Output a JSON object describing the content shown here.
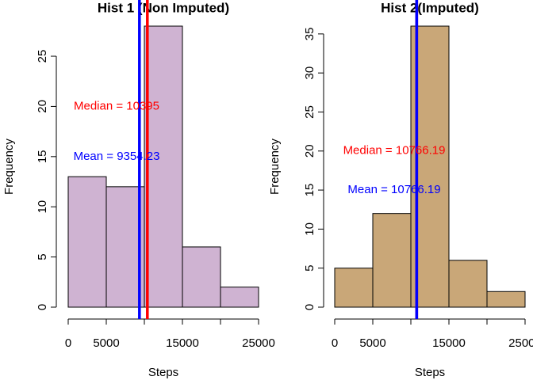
{
  "chart_data": [
    {
      "type": "histogram",
      "title": "Hist 1 (Non Imputed)",
      "xlabel": "Steps",
      "ylabel": "Frequency",
      "bins": [
        0,
        5000,
        10000,
        15000,
        20000,
        25000
      ],
      "values": [
        13,
        12,
        28,
        6,
        2
      ],
      "color": "#cfb3d2",
      "xlim": [
        0,
        25000
      ],
      "ylim": [
        0,
        28
      ],
      "xticks": [
        0,
        5000,
        15000,
        25000
      ],
      "yticks": [
        0,
        5,
        10,
        15,
        20,
        25
      ],
      "vlines": [
        {
          "text": "Median = 10395",
          "value": 10395,
          "color": "#ff0000"
        },
        {
          "text": "Mean = 9354.23",
          "value": 9354.23,
          "color": "#0000ff"
        }
      ]
    },
    {
      "type": "histogram",
      "title": "Hist 2(Imputed)",
      "xlabel": "Steps",
      "ylabel": "Frequency",
      "bins": [
        0,
        5000,
        10000,
        15000,
        20000,
        25000
      ],
      "values": [
        5,
        12,
        36,
        6,
        2
      ],
      "color": "#c9a778",
      "xlim": [
        0,
        25000
      ],
      "ylim": [
        0,
        36
      ],
      "xticks": [
        0,
        5000,
        15000,
        25000
      ],
      "yticks": [
        0,
        5,
        10,
        15,
        20,
        25,
        30,
        35
      ],
      "vlines": [
        {
          "text": "Median = 10766.19",
          "value": 10766.19,
          "color": "#ff0000"
        },
        {
          "text": "Mean = 10766.19",
          "value": 10766.19,
          "color": "#0000ff"
        }
      ]
    }
  ]
}
